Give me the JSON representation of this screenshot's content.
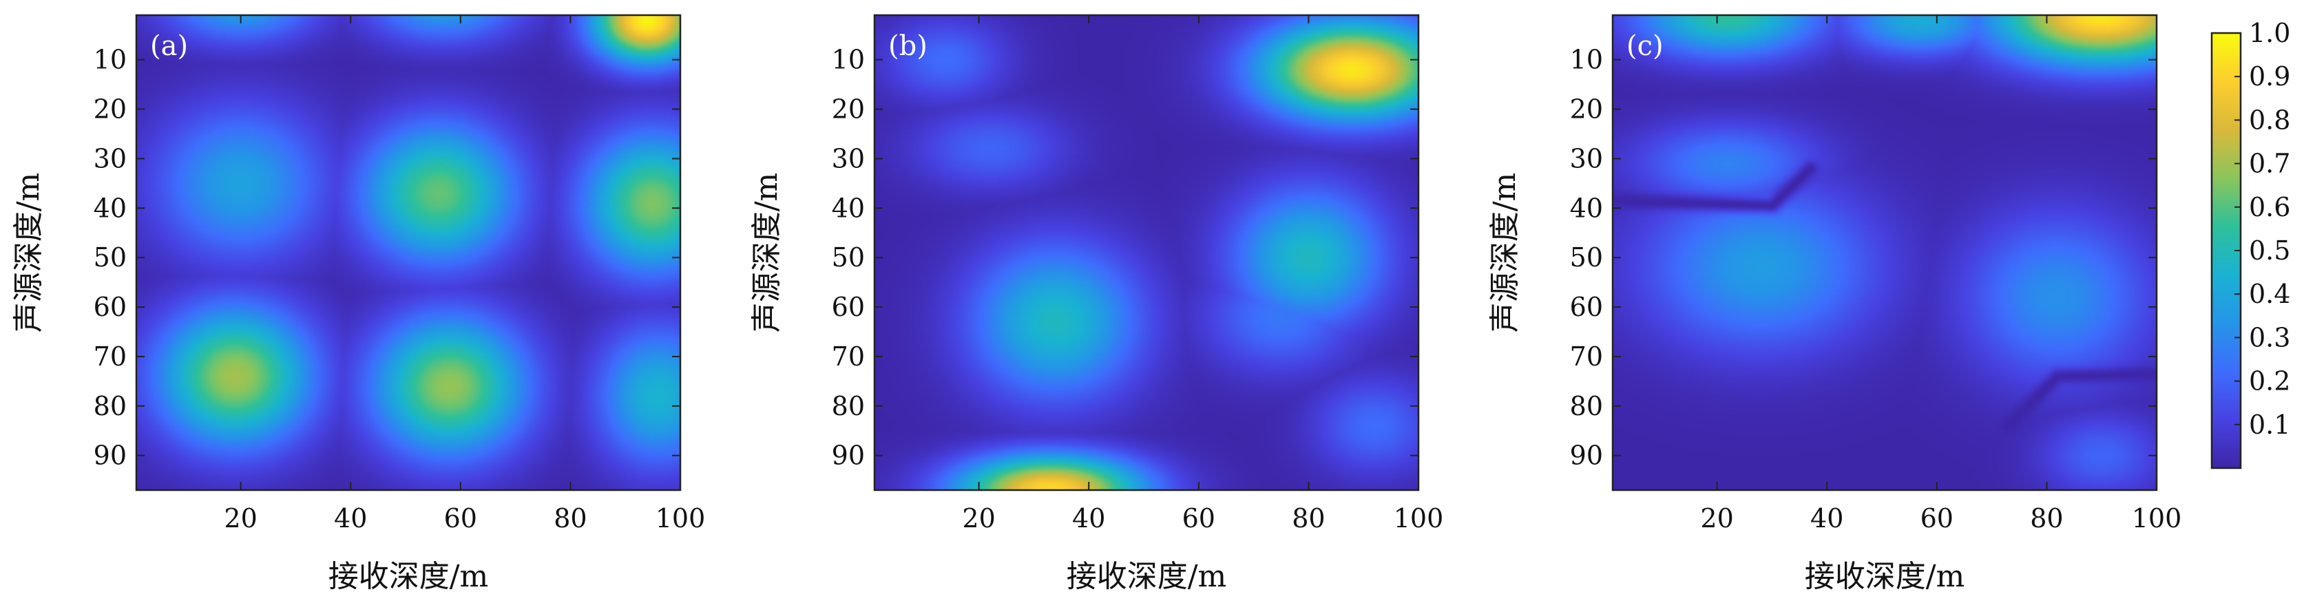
{
  "chart_data": [
    {
      "type": "heatmap",
      "panel_label": "(a)",
      "xlabel": "接收深度/m",
      "ylabel": "声源深度/m",
      "xlim": [
        1,
        100
      ],
      "ylim": [
        1,
        97
      ],
      "xticks": [
        20,
        40,
        60,
        80,
        100
      ],
      "yticks": [
        10,
        20,
        30,
        40,
        50,
        60,
        70,
        80,
        90
      ],
      "y_inverted": true,
      "value_range": [
        0,
        1
      ],
      "peaks": [
        {
          "x": 20,
          "y": 35,
          "value": 0.38,
          "spread_x": 11,
          "spread_y": 11
        },
        {
          "x": 56,
          "y": 37,
          "value": 0.62,
          "spread_x": 10,
          "spread_y": 10
        },
        {
          "x": 95,
          "y": 39,
          "value": 0.65,
          "spread_x": 9,
          "spread_y": 10
        },
        {
          "x": 19,
          "y": 74,
          "value": 0.7,
          "spread_x": 10,
          "spread_y": 10
        },
        {
          "x": 58,
          "y": 76,
          "value": 0.68,
          "spread_x": 10,
          "spread_y": 10
        },
        {
          "x": 96,
          "y": 78,
          "value": 0.45,
          "spread_x": 8,
          "spread_y": 10
        },
        {
          "x": 94,
          "y": 2,
          "value": 0.98,
          "spread_x": 7,
          "spread_y": 6
        },
        {
          "x": 20,
          "y": -2,
          "value": 0.4,
          "spread_x": 10,
          "spread_y": 6
        },
        {
          "x": 57,
          "y": -2,
          "value": 0.4,
          "spread_x": 10,
          "spread_y": 6
        }
      ]
    },
    {
      "type": "heatmap",
      "panel_label": "(b)",
      "xlabel": "接收深度/m",
      "ylabel": "声源深度/m",
      "xlim": [
        1,
        100
      ],
      "ylim": [
        1,
        97
      ],
      "xticks": [
        20,
        40,
        60,
        80,
        100
      ],
      "yticks": [
        10,
        20,
        30,
        40,
        50,
        60,
        70,
        80,
        90
      ],
      "y_inverted": true,
      "value_range": [
        0,
        1
      ],
      "peaks": [
        {
          "x": 88,
          "y": 12,
          "value": 0.95,
          "spread_x": 12,
          "spread_y": 7
        },
        {
          "x": 33,
          "y": 97,
          "value": 0.92,
          "spread_x": 12,
          "spread_y": 5
        },
        {
          "x": 34,
          "y": 63,
          "value": 0.48,
          "spread_x": 11,
          "spread_y": 11
        },
        {
          "x": 80,
          "y": 50,
          "value": 0.48,
          "spread_x": 10,
          "spread_y": 10
        },
        {
          "x": 22,
          "y": 28,
          "value": 0.2,
          "spread_x": 10,
          "spread_y": 6
        },
        {
          "x": 14,
          "y": 10,
          "value": 0.22,
          "spread_x": 8,
          "spread_y": 6
        },
        {
          "x": 92,
          "y": 84,
          "value": 0.22,
          "spread_x": 8,
          "spread_y": 7
        },
        {
          "x": 75,
          "y": 62,
          "value": 0.25,
          "spread_x": 10,
          "spread_y": 8
        }
      ]
    },
    {
      "type": "heatmap",
      "panel_label": "(c)",
      "xlabel": "接收深度/m",
      "ylabel": "声源深度/m",
      "xlim": [
        1,
        100
      ],
      "ylim": [
        1,
        97
      ],
      "xticks": [
        20,
        40,
        60,
        80,
        100
      ],
      "yticks": [
        10,
        20,
        30,
        40,
        50,
        60,
        70,
        80,
        90
      ],
      "y_inverted": true,
      "value_range": [
        0,
        1
      ],
      "peaks": [
        {
          "x": 90,
          "y": 1,
          "value": 0.95,
          "spread_x": 14,
          "spread_y": 7
        },
        {
          "x": 22,
          "y": 1,
          "value": 0.55,
          "spread_x": 12,
          "spread_y": 6
        },
        {
          "x": 57,
          "y": 2,
          "value": 0.42,
          "spread_x": 10,
          "spread_y": 5
        },
        {
          "x": 28,
          "y": 52,
          "value": 0.36,
          "spread_x": 15,
          "spread_y": 12
        },
        {
          "x": 82,
          "y": 58,
          "value": 0.32,
          "spread_x": 12,
          "spread_y": 12
        },
        {
          "x": 22,
          "y": 31,
          "value": 0.28,
          "spread_x": 12,
          "spread_y": 6
        },
        {
          "x": 90,
          "y": 90,
          "value": 0.2,
          "spread_x": 8,
          "spread_y": 6
        }
      ],
      "null_lines": [
        {
          "points": [
            [
              1,
              38.5
            ],
            [
              30,
              39.5
            ],
            [
              37,
              32
            ]
          ]
        },
        {
          "points": [
            [
              73,
              84
            ],
            [
              82,
              74
            ],
            [
              100,
              73.5
            ]
          ]
        }
      ]
    }
  ],
  "colorbar": {
    "ticks": [
      "0.1",
      "0.2",
      "0.3",
      "0.4",
      "0.5",
      "0.6",
      "0.7",
      "0.8",
      "0.9",
      "1.0"
    ],
    "range": [
      0,
      1
    ],
    "colormap": [
      "#3e26a8",
      "#4742e2",
      "#3e6dfd",
      "#2595e8",
      "#1ab2d2",
      "#2ec09a",
      "#8bc55c",
      "#d9b93a",
      "#fcce2e",
      "#f9fb0e"
    ]
  }
}
